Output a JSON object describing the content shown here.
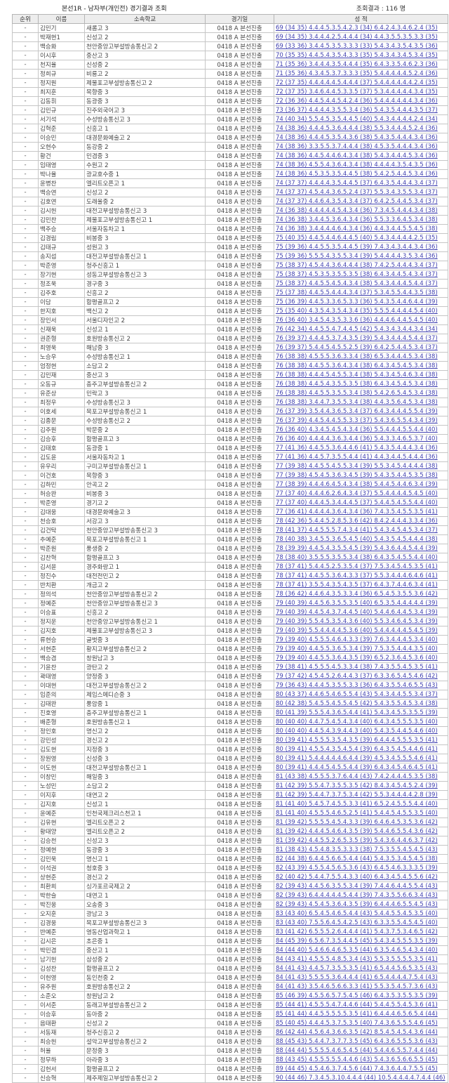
{
  "header": {
    "title": "본선1R - 남자부(개인전) 경기결과 조회",
    "result_count": "조회결과 : 116 명"
  },
  "table": {
    "columns": [
      "순위",
      "이름",
      "소속학교",
      "경기일",
      "성 적"
    ],
    "rank_label": "-",
    "date_label": "0418 A 본선진출",
    "row_fields": [
      "name",
      "school",
      "score"
    ],
    "colors": {
      "link": "#4040b0",
      "header_bg": "#ededed",
      "border": "#c6c6c6"
    },
    "rows": [
      [
        "김민기",
        "새롬고 3",
        "69 (34 35) 4.4.4.5.3.5.4.2.3 (34) 6.4.2.4.3.4.6.2.4 (35)"
      ],
      [
        "박재현1",
        "신성고 2",
        "69 (34 35) 3.4.4.4.2.5.4.4.4 (34) 4.4.3.5.5.3.5.3.3 (35)"
      ],
      [
        "백승화",
        "천안중앙고부설방송통신고 2",
        "69 (33 36) 3.4.4.5.3.5.3.3.3 (33) 5.4.3.4.3.5.4.3.5 (36)"
      ],
      [
        "이시후",
        "중산고 3",
        "70 (35 35) 4.4.5.4.3.5.4.3.3 (35) 5.4.3.4.3.4.5.3.4 (35)"
      ],
      [
        "천지율",
        "신성중 2",
        "71 (35 36) 3.4.4.4.3.5.4.4.4 (35) 6.4.3.3.5.4.6.2.3 (36)"
      ],
      [
        "정희규",
        "비룡고 2",
        "71 (35 36) 4.3.4.5.3.7.3.3.3 (35) 5.4.4.4.4.4.5.2.4 (36)"
      ],
      [
        "정지원",
        "제물포고부설방송통신고 2",
        "72 (37 35) 4.4.4.4.4.5.4.4.4 (37) 5.4.4.4.4.4.4.2.4 (35)"
      ],
      [
        "최지훈",
        "목향중 3",
        "72 (37 35) 3.4.6.4.4.5.3.3.5 (37) 5.3.4.4.4.4.4.3.4 (35)"
      ],
      [
        "김동휘",
        "동광중 3",
        "72 (36 36) 4.4.5.4.4.5.4.2.4 (36) 5.4.4.4.4.4.4.3.4 (36)"
      ],
      [
        "김민규",
        "진주외국어고 3",
        "73 (36 37) 4.4.4.4.3.5.5.3.4 (36) 5.4.3.5.4.4.4.3.5 (37)"
      ],
      [
        "서기석",
        "수성방송통신고 3",
        "74 (40 34) 5.5.4.5.3.5.4.4.5 (40) 5.4.3.4.4.4.4.2.4 (34)"
      ],
      [
        "김혁준",
        "신흥고 1",
        "74 (38 36) 4.4.4.5.3.6.4.4.4 (38) 5.5.3.4.4.4.5.2.4 (36)"
      ],
      [
        "이승민",
        "대경문화예술고 2",
        "74 (38 36) 4.4.4.5.3.5.4.3.6 (38) 5.4.3.5.4.4.4.3.4 (36)"
      ],
      [
        "오현수",
        "동강중 2",
        "74 (38 36) 3.3.5.5.3.7.4.4.4 (38) 4.5.3.5.4.4.4.3.4 (36)"
      ],
      [
        "황건",
        "민겸중 3",
        "74 (38 36) 4.4.5.4.4.6.4.3.4 (38) 5.4.3.4.4.4.5.3.4 (36)"
      ],
      [
        "임태영",
        "수원고 2",
        "74 (38 36) 4.5.5.4.3.6.4.3.4 (38) 4.4.4.4.3.5.4.3.5 (36)"
      ],
      [
        "박나율",
        "광교호수중 1",
        "74 (38 36) 4.5.3.5.3.5.4.4.5 (38) 5.4.2.5.4.4.5.3.4 (36)"
      ],
      [
        "윤병찬",
        "엘리트오픈고 1",
        "74 (37 37) 4.4.4.4.3.5.4.4.5 (37) 6.4.3.5.4.4.4.3.4 (37)"
      ],
      [
        "백승연",
        "신성고 2",
        "74 (37 37) 4.5.4.4.3.6.5.2.4 (37) 5.5.3.4.3.5.5.3.4 (37)"
      ],
      [
        "김호연",
        "도래울중 2",
        "74 (37 37) 4.4.6.4.3.5.4.3.4 (37) 6.4.2.5.4.4.5.3.4 (37)"
      ],
      [
        "김시헌",
        "대전고부설방송통신고 3",
        "74 (36 38) 4.4.4.4.4.5.4.3.4 (36) 7.3.4.5.4.4.4.3.4 (38)"
      ],
      [
        "김민찬",
        "제물포고부설방송통신고 1",
        "74 (36 38) 3.4.4.5.3.6.4.3.4 (36) 5.5.3.3.6.4.5.3.4 (38)"
      ],
      [
        "백주승",
        "서울자동차고 1",
        "74 (36 38) 3.4.4.4.4.6.4.3.4 (36) 4.4.3.4.4.5.5.4.5 (38)"
      ],
      [
        "김경림",
        "비봉중 3",
        "75 (40 35) 4.4.5.4.4.6.4.4.5 (40) 5.4.3.4.4.4.4.2.5 (35)"
      ],
      [
        "김태규",
        "성원고 3",
        "75 (39 36) 4.4.5.5.3.5.4.4.5 (39) 7.4.3.4.3.4.4.3.4 (36)"
      ],
      [
        "송지섭",
        "대전고부설방송통신고 1",
        "75 (39 36) 5.5.5.4.3.5.5.3.4 (39) 5.4.4.4.4.3.5.3.4 (36)"
      ],
      [
        "박준영",
        "청주신흥고 1",
        "75 (38 37) 4.5.4.4.3.6.4.4.4 (38) 7.4.2.5.4.4.4.3.4 (37)"
      ],
      [
        "장기현",
        "성동고부설방송통신고 3",
        "75 (38 37) 4.5.3.5.3.5.5.3.5 (38) 6.4.3.4.4.5.4.3.4 (37)"
      ],
      [
        "정조욱",
        "경구중 3",
        "75 (38 37) 4.4.5.5.4.5.4.3.4 (38) 5.4.3.4.4.4.5.4.4 (37)"
      ],
      [
        "김주호",
        "신흥고 2",
        "75 (37 38) 4.4.5.5.4.4.4.3.4 (37) 5.3.4.5.5.4.4.3.5 (38)"
      ],
      [
        "이담",
        "함평골프고 2",
        "75 (36 39) 4.4.5.3.3.6.5.3.3 (36) 5.4.3.5.4.4.6.4.4 (39)"
      ],
      [
        "한지호",
        "백신고 2",
        "75 (35 40) 4.3.5.4.3.5.4.3.4 (35) 5.5.5.4.4.4.4.5.4 (40)"
      ],
      [
        "장인서",
        "서울디자인고 2",
        "76 (36 40) 3.4.5.4.3.5.3.3.6 (36) 4.4.4.6.4.4.5.4.5 (40)"
      ],
      [
        "신재욱",
        "신성고 1",
        "76 (42 34) 4.4.5.5.4.7.4.4.5 (42) 5.4.3.4.3.4.4.3.4 (34)"
      ],
      [
        "권준형",
        "호원방송통신고 2",
        "76 (39 37) 4.4.4.5.3.7.4.3.5 (39) 5.4.3.4.4.4.5.4.4 (37)"
      ],
      [
        "최영욱",
        "해남중 3",
        "76 (39 37) 5.4.4.5.4.5.5.2.5 (39) 6.4.2.5.4.4.5.3.4 (37)"
      ],
      [
        "노승우",
        "수성방송통신고 1",
        "76 (38 38) 4.5.5.5.3.6.3.3.4 (38) 6.5.3.4.4.4.5.3.4 (38)"
      ],
      [
        "엄정현",
        "소담고 2",
        "76 (38 38) 4.4.5.5.3.6.4.3.4 (38) 6.4.3.4.5.4.5.3.4 (38)"
      ],
      [
        "김민재",
        "중산고 3",
        "76 (38 38) 4.4.4.5.4.5.5.3.4 (38) 5.4.3.4.5.4.6.3.4 (38)"
      ],
      [
        "오동규",
        "충주고부설방송통신고 2",
        "76 (38 38) 4.4.5.4.3.5.5.3.5 (38) 6.4.3.4.5.4.5.3.4 (38)"
      ],
      [
        "유준상",
        "민락고 3",
        "76 (38 38) 4.4.5.5.3.5.5.3.4 (38) 5.4.2.6.5.4.5.3.4 (38)"
      ],
      [
        "최정우",
        "수성방송통신고 3",
        "76 (38 38) 3.4.4.7.3.5.5.3.4 (38) 4.4.3.5.6.4.5.3.4 (38)"
      ],
      [
        "이호세",
        "목포고부설방송통신고 1",
        "76 (37 39) 3.5.4.4.3.6.5.3.4 (37) 6.4.3.4.4.4.5.5.4 (39)"
      ],
      [
        "김종문",
        "수성방송통신고 2",
        "76 (37 39) 4.4.5.4.4.5.5.3.3 (37) 5.4.3.6.5.5.4.3.4 (39)"
      ],
      [
        "김주원",
        "박문중 2",
        "76 (36 40) 4.3.4.5.4.5.4.3.4 (36) 5.5.4.4.4.5.5.4.4 (40)"
      ],
      [
        "김승후",
        "함평골프고 3",
        "76 (36 40) 4.4.4.4.3.6.3.4.4 (36) 5.4.3.3.4.6.5.3.7 (40)"
      ],
      [
        "김태호",
        "동광중 1",
        "77 (41 36) 4.4.5.5.3.6.4.4.6 (41) 5.4.3.5.4.4.4.3.4 (36)"
      ],
      [
        "김도윤",
        "서울자동차고 1",
        "77 (41 36) 4.4.5.7.3.5.5.4.4 (41) 4.4.3.4.4.5.4.4.4 (36)"
      ],
      [
        "유우리",
        "구미고부설방송통신고 1",
        "77 (39 38) 4.4.5.5.4.5.5.3.4 (39) 5.5.3.4.5.4.4.4.4 (38)"
      ],
      [
        "이건호",
        "목향중 3",
        "77 (39 38) 4.5.4.5.3.6.3.4.5 (39) 5.4.3.5.4.4.5.3.5 (38)"
      ],
      [
        "김하민",
        "안곡고 2",
        "77 (38 39) 4.4.4.6.4.5.4.3.4 (38) 5.4.4.5.4.4.6.3.4 (39)"
      ],
      [
        "허승완",
        "비봉중 3",
        "77 (37 40) 4.4.4.6.2.6.4.3.4 (37) 5.5.4.4.4.4.5.4.5 (40)"
      ],
      [
        "박준영",
        "경기고 2",
        "77 (37 40) 4.4.4.5.3.4.4.4.5 (37) 5.4.4.5.4.5.5.4.4 (40)"
      ],
      [
        "김대웅",
        "대경문화예술고 3",
        "77 (36 41) 4.4.4.4.3.6.4.3.4 (36) 7.4.3.5.4.5.5.3.5 (41)"
      ],
      [
        "천승호",
        "서강고 3",
        "78 (42 36) 5.4.4.5.2.8.5.3.6 (42) 8.4.2.4.4.4.3.3.4 (36)"
      ],
      [
        "김건탁",
        "천안중앙고부설방송통신고 3",
        "78 (41 37) 4.4.5.5.5.7.4.3.4 (41) 5.4.3.4.5.4.5.3.4 (37)"
      ],
      [
        "추예준",
        "목포고부설방송통신고 1",
        "78 (40 38) 3.4.5.5.3.6.5.4.5 (40) 5.4.3.5.4.5.4.4.4 (38)"
      ],
      [
        "박준원",
        "풍생중 2",
        "78 (39 39) 4.4.5.4.3.5.5.4.5 (39) 5.4.3.6.4.4.5.4.4 (39)"
      ],
      [
        "김찬혁",
        "함평골프고 3",
        "78 (38 40) 3.5.5.5.3.5.5.3.4 (38) 6.4.3.5.4.5.5.4.4 (40)"
      ],
      [
        "김서윤",
        "경주화랑고 1",
        "78 (37 41) 5.4.4.5.2.5.3.5.4 (37) 7.5.3.4.5.4.5.3.5 (41)"
      ],
      [
        "정진수",
        "대전전민고 2",
        "78 (37 41) 4.4.5.5.3.6.4.3.3 (37) 5.5.3.4.4.4.6.4.6 (41)"
      ],
      [
        "반치환",
        "개금고 2",
        "78 (37 41) 3.5.5.4.3.5.4.3.5 (37) 6.4.3.7.4.4.6.3.4 (41)"
      ],
      [
        "정의석",
        "천안중앙고부설방송통신고 2",
        "78 (36 42) 4.4.6.4.3.5.3.3.4 (36) 6.5.4.5.3.5.5.3.6 (42)"
      ],
      [
        "정예준",
        "천안중앙고부설방송통신고 3",
        "79 (40 39) 4.4.5.6.3.5.5.3.5 (40) 6.5.3.5.4.4.4.4.4 (39)"
      ],
      [
        "이승표",
        "신흥고 2",
        "79 (40 39) 4.4.5.4.3.7.4.4.5 (40) 5.4.4.6.4.4.5.3.4 (39)"
      ],
      [
        "정지운",
        "천안중앙고부설방송통신고 1",
        "79 (40 39) 5.5.4.5.3.5.4.3.6 (40) 5.5.3.4.6.4.5.3.4 (39)"
      ],
      [
        "김지호",
        "제물포고부설방송통신고 3",
        "79 (40 39) 5.5.4.4.4.4.5.3.6 (40) 5.4.4.4.4.4.5.4.5 (39)"
      ],
      [
        "류현승",
        "글벗중 3",
        "79 (39 40) 4.5.5.5.4.6.4.3.3 (39) 7.6.3.4.4.4.5.3.4 (40)"
      ],
      [
        "서현준",
        "황지고부설방송통신고 2",
        "79 (39 40) 4.4.5.5.3.6.5.3.4 (39) 7.5.3.5.4.4.4.3.5 (40)"
      ],
      [
        "백승겸",
        "창원남고 3",
        "79 (39 40) 4.4.5.5.3.6.4.3.5 (39) 6.5.2.3.6.4.5.3.6 (40)"
      ],
      [
        "기윤찬",
        "광탄고 2",
        "79 (38 41) 4.5.5.5.4.5.3.3.4 (38) 7.4.3.5.5.4.5.3.5 (41)"
      ],
      [
        "곽태영",
        "양정중 3",
        "79 (37 42) 4.5.4.5.2.6.4.4.3 (37) 6.3.3.6.5.4.5.4.6 (42)"
      ],
      [
        "이대현",
        "대전고부설방송통신고 2",
        "79 (36 43) 4.4.4.5.3.5.5.3.3 (36) 6.4.3.5.5.4.6.5.5 (43)"
      ],
      [
        "임준의",
        "제임스메디슨중 3",
        "80 (43 37) 4.4.6.5.4.6.5.5.4 (43) 5.4.3.4.4.5.5.3.4 (37)"
      ],
      [
        "김태완",
        "풍암중 1",
        "80 (42 38) 5.4.5.5.4.5.5.4.5 (42) 5.4.3.5.5.4.5.3.4 (38)"
      ],
      [
        "진호영",
        "충주고부설방송통신고 1",
        "80 (41 39) 5.5.5.4.3.6.5.4.4 (41) 5.4.3.4.5.5.3.5.5 (39)"
      ],
      [
        "배준형",
        "호원방송통신고 1",
        "80 (40 40) 4.4.7.5.4.5.4.3.4 (40) 6.4.3.4.5.5.5.3.5 (40)"
      ],
      [
        "정인호",
        "명신고 2",
        "80 (40 40) 4.4.5.4.3.9.4.4.3 (40) 5.4.3.5.4.4.5.4.6 (40)"
      ],
      [
        "강민성",
        "경신고 2",
        "80 (39 41) 4.5.5.5.3.5.4.3.5 (39) 6.4.4.4.5.5.5.3.5 (41)"
      ],
      [
        "김도현",
        "지정중 3",
        "80 (39 41) 4.5.5.4.3.5.4.5.4 (39) 6.4.3.5.4.5.4.4.6 (41)"
      ],
      [
        "장원영",
        "신성중 3",
        "80 (39 41) 5.4.4.4.4.4.6.4.4 (39) 4.5.3.4.5.5.5.4.6 (41)"
      ],
      [
        "이도현",
        "대전고부설방송통신고 1",
        "80 (39 41) 4.4.4.5.4.5.5.4.4 (39) 6.4.3.4.5.4.6.4.5 (41)"
      ],
      [
        "이창민",
        "해일중 3",
        "81 (43 38) 4.5.5.5.3.7.6.4.4 (43) 7.4.2.4.4.4.5.3.5 (38)"
      ],
      [
        "노성민",
        "소담고 2",
        "81 (42 39) 5.5.4.7.3.5.5.3.5 (42) 8.4.3.4.5.4.5.2.4 (39)"
      ],
      [
        "이지후",
        "대연고 2",
        "81 (42 39) 5.4.4.7.3.7.5.3.4 (42) 5.5.3.4.4.4.4.2.8 (39)"
      ],
      [
        "김지호",
        "신성고 1",
        "81 (41 40) 5.4.5.7.4.5.5.3.3 (41) 6.5.2.4.5.5.5.4.4 (40)"
      ],
      [
        "윤예준",
        "인천국제크리스천고 1",
        "81 (41 40) 4.5.5.5.4.6.5.2.5 (41) 5.4.4.5.4.5.5.3.5 (40)"
      ],
      [
        "김유현",
        "엘리트오픈고 2",
        "81 (39 42) 5.5.5.5.4.5.4.3.3 (39) 6.4.6.4.5.3.5.3.6 (42)"
      ],
      [
        "황태양",
        "엘리트오픈고 2",
        "81 (39 42) 4.4.4.5.4.6.4.3.5 (39) 5.4.4.6.5.5.4.3.6 (42)"
      ],
      [
        "김승천",
        "신성고 3",
        "81 (39 42) 4.4.5.5.2.6.5.3.5 (39) 5.4.3.6.4.4.6.3.7 (42)"
      ],
      [
        "정예현",
        "동광중 3",
        "81 (38 43) 4.5.4.8.3.5.3.3.3 (38) 7.5.3.5.5.4.5.4.5 (43)"
      ],
      [
        "김민욱",
        "명신고 1",
        "82 (44 38) 6.4.4.5.6.6.5.4.4 (44) 5.4.3.5.3.4.5.4.5 (38)"
      ],
      [
        "이석권",
        "청호중 3",
        "82 (43 39) 4.5.5.4.5.6.5.3.6 (43) 6.4.5.4.6.3.3.3.5 (39)"
      ],
      [
        "상현준",
        "경신고 2",
        "82 (40 42) 5.4.4.7.5.5.4.3.3 (40) 6.4.3.4.5.4.5.5.6 (42)"
      ],
      [
        "최환희",
        "싱가포르국제고 2",
        "82 (39 43) 4.4.5.6.3.5.5.3.4 (39) 7.4.4.6.4.4.5.5.4 (43)"
      ],
      [
        "박한슬",
        "대연고 1",
        "82 (39 43) 6.4.4.4.4.4.5.4.4 (39) 7.4.3.5.5.6.6.3.4 (43)"
      ],
      [
        "박진웅",
        "오송중 3",
        "82 (39 43) 4.5.4.5.3.6.4.3.5 (39) 6.4.4.4.6.5.5.4.5 (43)"
      ],
      [
        "오지훈",
        "광남고 3",
        "83 (43 40) 6.5.4.5.4.6.5.4.4 (43) 5.4.4.5.5.4.5.3.5 (40)"
      ],
      [
        "김경웅",
        "목포고부설방송통신고 3",
        "83 (43 40) 7.5.5.6.4.5.4.2.5 (43) 6.3.3.5.5.4.5.4.5 (40)"
      ],
      [
        "반예준",
        "영동산업과학고 1",
        "83 (41 42) 6.5.5.5.2.6.4.4.4 (41) 5.4.3.7.5.3.4.6.5 (42)"
      ],
      [
        "김시은",
        "초은중 1",
        "84 (45 39) 6.5.6.7.3.5.4.4.5 (45) 5.4.3.4.5.5.5.3.5 (39)"
      ],
      [
        "박민겸",
        "중산고 1",
        "84 (44 40) 5.4.6.6.4.6.5.3.5 (44) 6.3.5.4.6.5.4.3.4 (40)"
      ],
      [
        "남기헌",
        "삼성중 2",
        "84 (43 41) 4.5.5.5.4.8.5.3.4 (43) 5.5.3.5.5.5.5.3.5 (41)"
      ],
      [
        "김성찬",
        "함평골프고 2",
        "84 (41 43) 4.4.5.7.3.5.5.3.5 (41) 6.5.4.4.5.6.5.3.5 (43)"
      ],
      [
        "이헌영",
        "동인천중 2",
        "84 (41 43) 5.5.5.5.3.6.4.4.4 (41) 6.5.4.4.4.4.7.5.4 (43)"
      ],
      [
        "유주원",
        "호원방송통신고 2",
        "84 (41 43) 3.5.4.6.5.6.6.3.3 (41) 5.5.3.5.4.5.7.3.6 (43)"
      ],
      [
        "소준오",
        "창원남고 2",
        "85 (46 39) 4.5.5.6.5.7.5.4.5 (46) 6.4.3.5.3.5.5.3.5 (39)"
      ],
      [
        "이서준",
        "동래고부설방송통신고 2",
        "85 (44 41) 4.5.5.5.4.7.4.4.6 (44) 5.4.4.5.5.4.5.3.6 (41)"
      ],
      [
        "이승후",
        "동아중 2",
        "85 (41 44) 4.4.5.5.5.5.5.3.5 (41) 6.4.4.4.6.5.6.5.4 (44)"
      ],
      [
        "음태환",
        "신성고 2",
        "85 (40 45) 4.4.4.5.3.7.5.3.5 (40) 7.4.3.6.5.5.5.4.6 (45)"
      ],
      [
        "서동재",
        "청주신흥고 2",
        "86 (42 44) 4.5.6.4.3.6.6.3.5 (42) 8.5.4.5.4.5.4.3.6 (44)"
      ],
      [
        "최승헌",
        "설악고부설방송통신고 2",
        "88 (45 43) 5.4.4.7.3.7.7.3.5 (45) 6.4.3.6.5.5.5.3.6 (43)"
      ],
      [
        "허율",
        "문정중 3",
        "88 (44 44) 5.5.5.5.4.6.5.4.5 (44) 5.4.4.6.5.5.7.4.4 (44)"
      ],
      [
        "정무하",
        "아라중 3",
        "88 (43 45) 4.5.5.5.5.5.4.4.6 (43) 5.4.3.6.5.6.6.5.5 (45)"
      ],
      [
        "김헌서",
        "함평골프고 2",
        "89 (44 45) 4.5.4.6.3.7.4.5.6 (44) 7.4.3.6.4.4.7.5.5 (45)"
      ],
      [
        "신승혁",
        "제주제일고부설방송통신고 2",
        "90 (44 46) 7.3.4.5.3.10.4.4.4 (44) 10.5.4.4.4.4.7.4.4 (46)"
      ]
    ]
  }
}
